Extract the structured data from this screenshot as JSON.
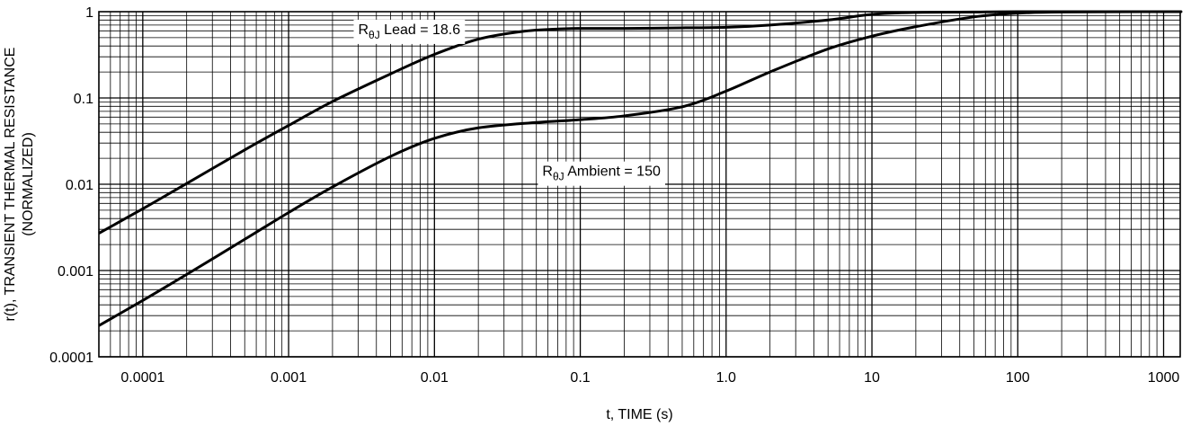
{
  "chart_data": {
    "type": "line",
    "xlabel": "t, TIME (s)",
    "ylabel_line1": "r(t), TRANSIENT THERMAL RESISTANCE",
    "ylabel_line2": "(NORMALIZED)",
    "x_scale": "log",
    "y_scale": "log",
    "xlim": [
      5e-05,
      1300
    ],
    "ylim": [
      0.0001,
      1
    ],
    "grid": true,
    "x_ticks": [
      {
        "value": 0.0001,
        "label": "0.0001"
      },
      {
        "value": 0.001,
        "label": "0.001"
      },
      {
        "value": 0.01,
        "label": "0.01"
      },
      {
        "value": 0.1,
        "label": "0.1"
      },
      {
        "value": 1,
        "label": "1.0"
      },
      {
        "value": 10,
        "label": "10"
      },
      {
        "value": 100,
        "label": "100"
      },
      {
        "value": 1000,
        "label": "1000"
      }
    ],
    "y_ticks": [
      {
        "value": 0.0001,
        "label": "0.0001"
      },
      {
        "value": 0.001,
        "label": "0.001"
      },
      {
        "value": 0.01,
        "label": "0.01"
      },
      {
        "value": 0.1,
        "label": "0.1"
      },
      {
        "value": 1,
        "label": "1"
      }
    ],
    "series": [
      {
        "name": "RθJ Lead = 18.6",
        "label_main": "R",
        "label_sub": "θJ",
        "label_rest": " Lead = 18.6",
        "label_anchor": {
          "x": 0.003,
          "y": 0.55
        },
        "x": [
          5e-05,
          0.0001,
          0.0002,
          0.0005,
          0.001,
          0.002,
          0.005,
          0.01,
          0.02,
          0.04,
          0.07,
          0.1,
          0.2,
          0.5,
          1,
          2,
          5,
          10,
          20,
          50,
          100,
          1000,
          1300
        ],
        "y": [
          0.0027,
          0.0052,
          0.0102,
          0.025,
          0.048,
          0.091,
          0.19,
          0.32,
          0.48,
          0.59,
          0.63,
          0.64,
          0.64,
          0.65,
          0.66,
          0.7,
          0.8,
          0.93,
          0.98,
          0.99,
          1.0,
          1.0,
          1.0
        ]
      },
      {
        "name": "RθJ Ambient = 150",
        "label_main": "R",
        "label_sub": "θJ",
        "label_rest": " Ambient = 150",
        "label_anchor": {
          "x": 0.055,
          "y": 0.0125
        },
        "x": [
          5e-05,
          0.0001,
          0.0002,
          0.0005,
          0.001,
          0.002,
          0.005,
          0.01,
          0.02,
          0.05,
          0.1,
          0.2,
          0.5,
          1,
          2,
          5,
          10,
          20,
          50,
          100,
          200,
          1000,
          1300
        ],
        "y": [
          0.00023,
          0.00045,
          0.0009,
          0.0023,
          0.0047,
          0.0093,
          0.021,
          0.034,
          0.045,
          0.052,
          0.056,
          0.062,
          0.079,
          0.12,
          0.2,
          0.37,
          0.52,
          0.67,
          0.87,
          0.96,
          0.99,
          1.0,
          1.0
        ]
      }
    ]
  }
}
